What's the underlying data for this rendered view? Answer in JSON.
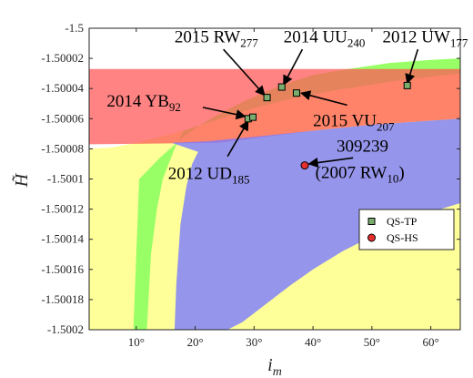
{
  "chart_data": {
    "type": "scatter",
    "xlabel": "i",
    "xlabel_sub": "m",
    "ylabel": "H̃",
    "xlim": [
      2,
      65
    ],
    "ylim": [
      -1.5002,
      -1.5
    ],
    "x_ticks": [
      10,
      20,
      30,
      40,
      50,
      60
    ],
    "x_tick_labels": [
      "10°",
      "20°",
      "30°",
      "40°",
      "50°",
      "60°"
    ],
    "y_ticks": [
      -1.5,
      -1.50002,
      -1.50004,
      -1.50006,
      -1.50008,
      -1.5001,
      -1.50012,
      -1.50014,
      -1.50016,
      -1.50018,
      -1.5002
    ],
    "y_tick_labels": [
      "-1.5",
      "-1.50002",
      "-1.50004",
      "-1.50006",
      "-1.50008",
      "-1.5001",
      "-1.50012",
      "-1.50014",
      "-1.50016",
      "-1.50018",
      "-1.5002"
    ],
    "grid": false,
    "legend_position": "right-middle",
    "colors": {
      "yellow_region": "#ffff99",
      "green_region": "#99ff66",
      "red_region": "#ff5a5a",
      "blue_region": "#7b7bff",
      "qs_tp_marker": "#7aad6e",
      "qs_hs_marker": "#e62e2e"
    },
    "regions": {
      "yellow": [
        [
          2,
          -1.5002
        ],
        [
          2,
          -1.50008
        ],
        [
          6,
          -1.500079
        ],
        [
          10,
          -1.500076
        ],
        [
          14,
          -1.500072
        ],
        [
          18,
          -1.500068
        ],
        [
          22,
          -1.500063
        ],
        [
          26,
          -1.500058
        ],
        [
          30,
          -1.500053
        ],
        [
          36,
          -1.500047
        ],
        [
          44,
          -1.500041
        ],
        [
          54,
          -1.500035
        ],
        [
          65,
          -1.50003
        ],
        [
          65,
          -1.5002
        ]
      ],
      "green": [
        [
          9.5,
          -1.5002
        ],
        [
          10.5,
          -1.5001
        ],
        [
          12,
          -1.500094
        ],
        [
          14,
          -1.500086
        ],
        [
          16,
          -1.500079
        ],
        [
          18,
          -1.500072
        ],
        [
          21,
          -1.500064
        ],
        [
          24,
          -1.500057
        ],
        [
          28,
          -1.500049
        ],
        [
          32,
          -1.500042
        ],
        [
          36,
          -1.500036
        ],
        [
          40,
          -1.500031
        ],
        [
          46,
          -1.500027
        ],
        [
          53,
          -1.500023
        ],
        [
          60,
          -1.500021
        ],
        [
          65,
          -1.50002
        ],
        [
          65,
          -1.50003
        ],
        [
          54,
          -1.500035
        ],
        [
          44,
          -1.500041
        ],
        [
          36,
          -1.500047
        ],
        [
          30,
          -1.500053
        ],
        [
          26,
          -1.500058
        ],
        [
          22,
          -1.500063
        ],
        [
          18,
          -1.500068
        ],
        [
          16.5,
          -1.50008
        ],
        [
          15.5,
          -1.50009
        ],
        [
          14.5,
          -1.5001
        ],
        [
          13.5,
          -1.50012
        ],
        [
          12.5,
          -1.50015
        ],
        [
          11.8,
          -1.5002
        ]
      ],
      "red": [
        [
          2,
          -1.500027
        ],
        [
          65,
          -1.500027
        ],
        [
          65,
          -1.50006
        ],
        [
          50,
          -1.500064
        ],
        [
          40,
          -1.500068
        ],
        [
          30,
          -1.500073
        ],
        [
          24,
          -1.500076
        ],
        [
          2,
          -1.500077
        ]
      ],
      "blue": [
        [
          16,
          -1.500076
        ],
        [
          22,
          -1.500075
        ],
        [
          30,
          -1.500072
        ],
        [
          40,
          -1.500068
        ],
        [
          50,
          -1.500064
        ],
        [
          65,
          -1.50006
        ],
        [
          65,
          -1.500116
        ],
        [
          60,
          -1.500122
        ],
        [
          55,
          -1.500129
        ],
        [
          50,
          -1.500138
        ],
        [
          45,
          -1.500148
        ],
        [
          40,
          -1.50016
        ],
        [
          36,
          -1.500171
        ],
        [
          32,
          -1.500183
        ],
        [
          28,
          -1.500195
        ],
        [
          25.5,
          -1.5002
        ],
        [
          16.5,
          -1.5002
        ],
        [
          16.8,
          -1.50017
        ],
        [
          17.5,
          -1.50013
        ],
        [
          18.5,
          -1.500105
        ],
        [
          19.5,
          -1.50009
        ],
        [
          20.5,
          -1.500082
        ]
      ]
    },
    "series": [
      {
        "name": "QS-TP",
        "marker": "square",
        "points": [
          {
            "x": 29.0,
            "y": -1.50006
          },
          {
            "x": 29.8,
            "y": -1.500059
          },
          {
            "x": 32.2,
            "y": -1.500046
          },
          {
            "x": 34.7,
            "y": -1.500039
          },
          {
            "x": 37.2,
            "y": -1.500043
          },
          {
            "x": 56.0,
            "y": -1.500038
          }
        ]
      },
      {
        "name": "QS-HS",
        "marker": "circle",
        "points": [
          {
            "x": 38.6,
            "y": -1.500091
          }
        ]
      }
    ],
    "annotations": [
      {
        "main": "2015 RW",
        "sub": "277",
        "text_x": 16.5,
        "text_y": -1.5000095,
        "arrow_from": [
          24.8,
          -1.500014
        ],
        "arrow_to": [
          31.8,
          -1.5000445
        ]
      },
      {
        "main": "2014 UU",
        "sub": "240",
        "text_x": 35.0,
        "text_y": -1.5000095,
        "arrow_from": [
          38.2,
          -1.500014
        ],
        "arrow_to": [
          35.0,
          -1.5000375
        ]
      },
      {
        "main": "2012 UW",
        "sub": "177",
        "text_x": 51.8,
        "text_y": -1.5000095,
        "arrow_from": [
          57.8,
          -1.500014
        ],
        "arrow_to": [
          56.0,
          -1.5000365
        ]
      },
      {
        "main": "2014 YB",
        "sub": "92",
        "text_x": 5.0,
        "text_y": -1.500052,
        "arrow_from": [
          21.3,
          -1.5000525
        ],
        "arrow_to": [
          28.5,
          -1.5000585
        ]
      },
      {
        "main": "2015 VU",
        "sub": "207",
        "text_x": 40.0,
        "text_y": -1.500065,
        "arrow_from": [
          45.8,
          -1.500051
        ],
        "arrow_to": [
          38.0,
          -1.500043
        ]
      },
      {
        "main": "2012 UD",
        "sub": "185",
        "text_x": 15.4,
        "text_y": -1.5001,
        "arrow_from": [
          25.5,
          -1.500085
        ],
        "arrow_to": [
          29.0,
          -1.5000615
        ]
      },
      {
        "main": "309239",
        "sub": "",
        "text_x": 44.0,
        "text_y": -1.500082,
        "arrow_from": [
          46.8,
          -1.500086
        ],
        "arrow_to": [
          39.3,
          -1.50009
        ]
      },
      {
        "main": "(2007 RW",
        "sub": "10",
        "tail": ")",
        "text_x": 40.4,
        "text_y": -1.5000995,
        "arrow_from": null,
        "arrow_to": null
      }
    ],
    "legend": [
      {
        "label": "QS-TP",
        "marker": "square"
      },
      {
        "label": "QS-HS",
        "marker": "circle"
      }
    ]
  }
}
